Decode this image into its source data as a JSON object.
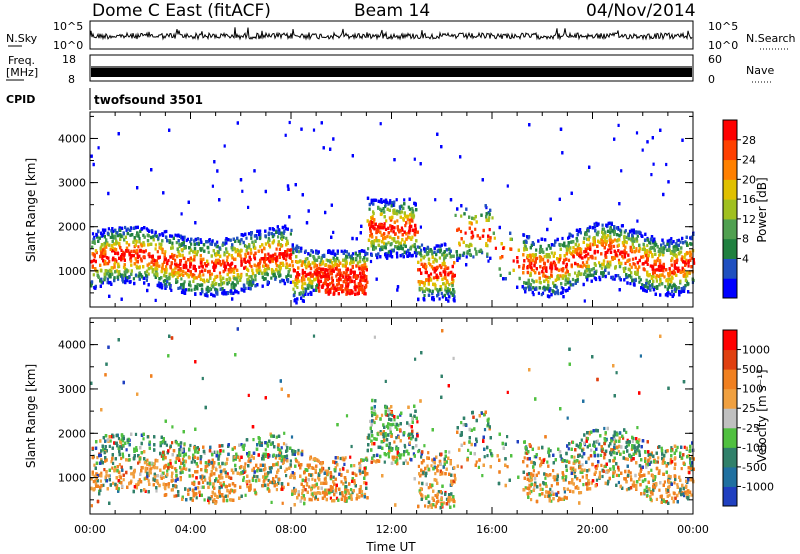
{
  "header": {
    "station": "Dome C East (fitACF)",
    "beam": "Beam 14",
    "date": "04/Nov/2014"
  },
  "noise_panel": {
    "left_label": "N.Sky",
    "right_label": "N.Search",
    "tick_top": "10^5",
    "tick_bottom": "10^0",
    "right_tick_top": "10^5",
    "right_tick_bottom": "10^0"
  },
  "freq_panel": {
    "left_label_1": "Freq.",
    "left_label_2": "[MHz]",
    "tick_top": "18",
    "tick_bottom": "8",
    "right_label": "Nave",
    "right_tick_top": "60",
    "right_tick_bottom": "0"
  },
  "cpid": {
    "label": "CPID",
    "program": "twofsound 3501"
  },
  "chart_data": [
    {
      "type": "heatmap",
      "name": "power-panel",
      "ylabel": "Slant Range [km]",
      "xlabel": "",
      "x_range_hours": [
        0,
        24
      ],
      "ylim": [
        180,
        4600
      ],
      "yticks": [
        "1000",
        "2000",
        "3000",
        "4000"
      ],
      "colorbar_label": "Power [dB]",
      "colorbar_ticks": [
        "28",
        "24",
        "20",
        "16",
        "12",
        "8",
        "4"
      ],
      "colors": [
        "#0000ff",
        "#2050c0",
        "#208040",
        "#50a050",
        "#a0c020",
        "#e0c000",
        "#ff8000",
        "#ff4000",
        "#ff0000"
      ]
    },
    {
      "type": "heatmap",
      "name": "velocity-panel",
      "ylabel": "Slant Range [km]",
      "xlabel": "Time UT",
      "x_range_hours": [
        0,
        24
      ],
      "ylim": [
        180,
        4600
      ],
      "yticks": [
        "1000",
        "2000",
        "3000",
        "4000"
      ],
      "xticks": [
        "00:00",
        "04:00",
        "08:00",
        "12:00",
        "16:00",
        "20:00",
        "00:00"
      ],
      "colorbar_label": "Velocity [m s⁻¹]",
      "colorbar_ticks": [
        "1000",
        "500",
        "100",
        "25",
        "-25",
        "-100",
        "-500",
        "-1000"
      ],
      "colors": [
        "#2040c0",
        "#2070a0",
        "#30806a",
        "#50c040",
        "#c0c0c0",
        "#f0a040",
        "#f08020",
        "#e04010",
        "#ff0000"
      ]
    }
  ]
}
